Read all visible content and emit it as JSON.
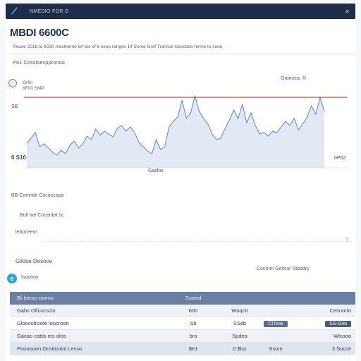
{
  "window": {
    "title": "NMEDIO FOR G",
    "logo_icon": "chart-logo-icon",
    "close_icon": "close-icon"
  },
  "header": {
    "title": "MBDI 6600C",
    "subtitle": "Reuse 2018 to 6030 mechonne 6rf bio of 6 seep ranges 14 Some Orof Transce locectton ferme to cone",
    "section": "P61 Cosstsecppronoo"
  },
  "chart": {
    "legend_a": "Orfkt",
    "legend_b": "6F00 SMP",
    "top_right_label": "Oroncea. ®",
    "left_top_tick": "SB",
    "left_bottom_tick": "0 S10",
    "right_bottom_tick": "0P62",
    "bottom_center_label": "Gaclos"
  },
  "chart_data": {
    "type": "area",
    "series": [
      {
        "values": [
          35,
          42,
          50,
          30,
          34,
          28,
          22,
          18,
          25,
          20,
          32,
          38,
          28,
          34,
          45,
          40,
          55,
          46,
          52,
          48,
          44,
          56,
          60,
          52,
          58,
          50,
          36,
          30,
          24,
          20,
          40,
          26,
          30,
          58,
          66,
          72,
          96,
          70,
          78,
          102,
          80,
          70,
          62,
          48,
          40,
          42,
          56,
          68,
          82,
          70,
          90,
          64,
          78,
          60,
          48,
          50,
          45,
          52,
          50,
          58,
          66,
          60,
          70,
          54,
          62,
          72,
          88,
          76,
          100,
          80
        ]
      }
    ],
    "reference_line": 100,
    "ylim": [
      0,
      120
    ],
    "grid": false
  },
  "controls": {
    "row1": "BB Comntie Cococcopa",
    "row2": "Bolt loe Cocenbrt sc",
    "row3": "leboceero"
  },
  "alert": {
    "title": "Gildse Desoce",
    "text": "Isooooy",
    "right": "Coconn Goltsur Stbodry"
  },
  "table": {
    "header": [
      "Bli lotcoo cooroo",
      "Scornd",
      "",
      "",
      ""
    ],
    "rows": [
      [
        "Gabs  Oficocsclo",
        "600",
        "Woqctt",
        "",
        "Cesnorto"
      ],
      [
        "Gloocoltciole loocroon",
        "Sb",
        "SSdb",
        "Cl lcos",
        "SS-Goo"
      ],
      [
        "Gacao cattis ms olos",
        "bro",
        "Spdea",
        "",
        "Wlcooo"
      ],
      [
        "Poooooon Ocsttontol Lesso",
        "$e1",
        "0 $lsc",
        "Ssom",
        "3 Socce"
      ]
    ]
  }
}
